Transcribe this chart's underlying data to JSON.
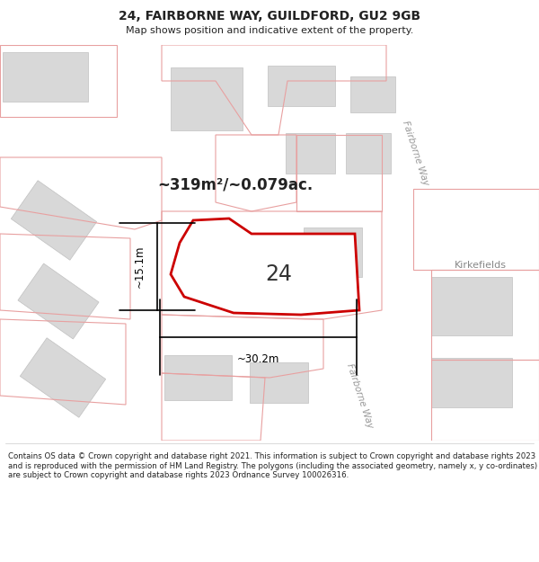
{
  "title": "24, FAIRBORNE WAY, GUILDFORD, GU2 9GB",
  "subtitle": "Map shows position and indicative extent of the property.",
  "footer": "Contains OS data © Crown copyright and database right 2021. This information is subject to Crown copyright and database rights 2023 and is reproduced with the permission of HM Land Registry. The polygons (including the associated geometry, namely x, y co-ordinates) are subject to Crown copyright and database rights 2023 Ordnance Survey 100026316.",
  "area_label": "~319m²/~0.079ac.",
  "number_label": "24",
  "width_label": "~30.2m",
  "height_label": "~15.1m",
  "street_label_top": "Fairborne Way",
  "street_label_bot": "Fairborne Way",
  "kirkefields_label": "Kirkefields",
  "red_color": "#cc0000",
  "pink_color": "#e8a0a0",
  "building_fill": "#d8d8d8",
  "building_edge": "#c0c0c0",
  "road_fill": "#ebebeb",
  "green_fill": "#dcecd8",
  "white": "#ffffff",
  "text_dark": "#222222",
  "text_gray": "#888888"
}
